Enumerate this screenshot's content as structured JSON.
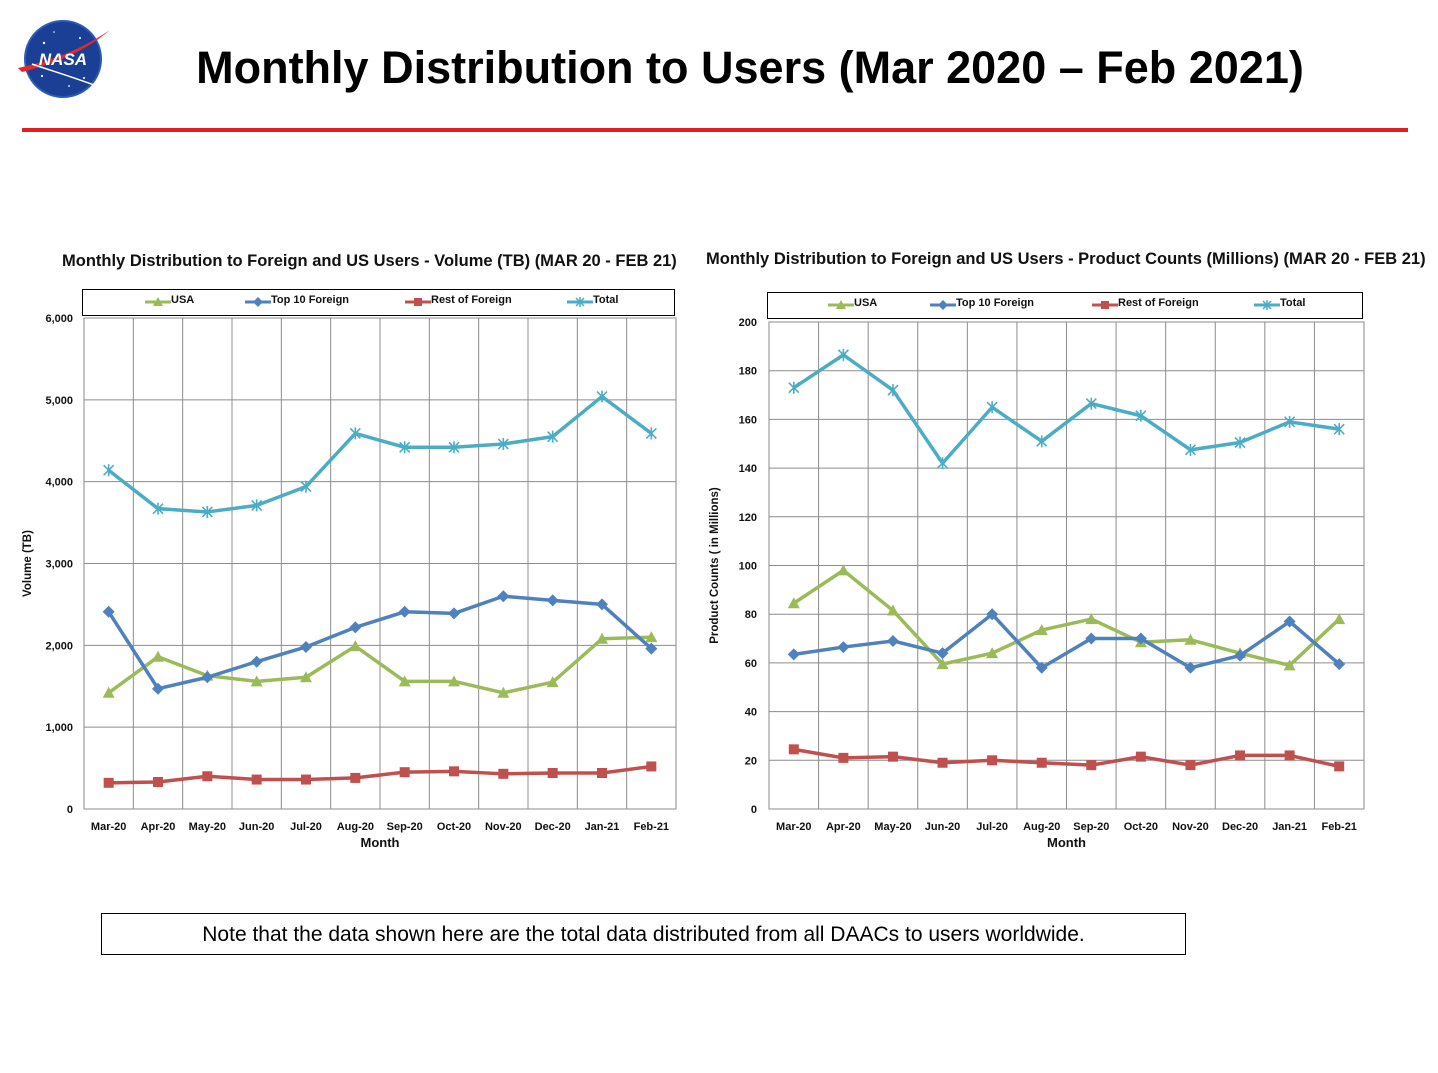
{
  "header": {
    "title": "Monthly Distribution to Users (Mar 2020 – Feb 2021)",
    "logo_text": "NASA"
  },
  "colors": {
    "usa": "#9bbb59",
    "top10": "#4f81bd",
    "rest": "#c0504d",
    "total": "#4bacc6",
    "rule": "#e02020"
  },
  "note": "Note that the data shown here are the total data distributed from all DAACs to users worldwide.",
  "chart_data": [
    {
      "type": "line",
      "title": "Monthly Distribution to Foreign and US Users - Volume  (TB) (MAR 20 - FEB 21)",
      "xlabel": "Month",
      "ylabel": "Volume (TB)",
      "ylim": [
        0,
        6000
      ],
      "yticks": [
        0,
        1000,
        2000,
        3000,
        4000,
        5000,
        6000
      ],
      "ytick_labels": [
        "0",
        "1,000",
        "2,000",
        "3,000",
        "4,000",
        "5,000",
        "6,000"
      ],
      "grid": true,
      "legend": "top",
      "categories": [
        "Mar-20",
        "Apr-20",
        "May-20",
        "Jun-20",
        "Jul-20",
        "Aug-20",
        "Sep-20",
        "Oct-20",
        "Nov-20",
        "Dec-20",
        "Jan-21",
        "Feb-21"
      ],
      "series": [
        {
          "name": "USA",
          "color": "#9bbb59",
          "marker": "triangle",
          "values": [
            1420,
            1860,
            1630,
            1560,
            1610,
            1990,
            1560,
            1560,
            1420,
            1550,
            2080,
            2100
          ]
        },
        {
          "name": "Top 10 Foreign",
          "color": "#4f81bd",
          "marker": "diamond",
          "values": [
            2410,
            1470,
            1610,
            1800,
            1980,
            2220,
            2410,
            2390,
            2600,
            2550,
            2500,
            1960
          ]
        },
        {
          "name": "Rest of Foreign",
          "color": "#c0504d",
          "marker": "square",
          "values": [
            320,
            330,
            400,
            360,
            360,
            380,
            450,
            460,
            430,
            440,
            440,
            520
          ]
        },
        {
          "name": "Total",
          "color": "#4bacc6",
          "marker": "star",
          "values": [
            4140,
            3670,
            3630,
            3710,
            3940,
            4590,
            4420,
            4420,
            4460,
            4550,
            5040,
            4590
          ]
        }
      ]
    },
    {
      "type": "line",
      "title": "Monthly Distribution to Foreign and US Users - Product Counts (Millions) (MAR 20 - FEB 21)",
      "xlabel": "Month",
      "ylabel": "Product Counts ( in Millions)",
      "ylim": [
        0,
        200
      ],
      "yticks": [
        0,
        20,
        40,
        60,
        80,
        100,
        120,
        140,
        160,
        180,
        200
      ],
      "ytick_labels": [
        "0",
        "20",
        "40",
        "60",
        "80",
        "100",
        "120",
        "140",
        "160",
        "180",
        "200"
      ],
      "grid": true,
      "legend": "top",
      "categories": [
        "Mar-20",
        "Apr-20",
        "May-20",
        "Jun-20",
        "Jul-20",
        "Aug-20",
        "Sep-20",
        "Oct-20",
        "Nov-20",
        "Dec-20",
        "Jan-21",
        "Feb-21"
      ],
      "series": [
        {
          "name": "USA",
          "color": "#9bbb59",
          "marker": "triangle",
          "values": [
            84.5,
            98,
            81.5,
            59.5,
            64,
            73.5,
            78,
            68.5,
            69.5,
            64,
            59,
            78
          ]
        },
        {
          "name": "Top 10 Foreign",
          "color": "#4f81bd",
          "marker": "diamond",
          "values": [
            63.5,
            66.5,
            69,
            64,
            80,
            58,
            70,
            70,
            58,
            63,
            77,
            59.5
          ]
        },
        {
          "name": "Rest of Foreign",
          "color": "#c0504d",
          "marker": "square",
          "values": [
            24.5,
            21,
            21.5,
            19,
            20,
            19,
            18,
            21.5,
            18,
            22,
            22,
            17.5
          ]
        },
        {
          "name": "Total",
          "color": "#4bacc6",
          "marker": "star",
          "values": [
            173,
            186.5,
            172,
            142,
            165,
            151,
            166.5,
            161.5,
            147.5,
            150.5,
            159,
            156
          ]
        }
      ]
    }
  ]
}
